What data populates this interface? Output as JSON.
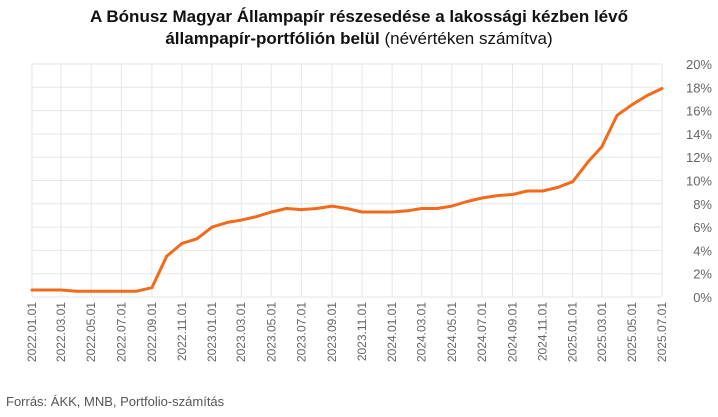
{
  "title": {
    "line1": "A Bónusz Magyar Állampapír részesedése a lakossági kézben lévő",
    "line2_bold": "állampapír-portfólión belül",
    "line2_normal": " (névértéken számítva)"
  },
  "source": "Forrás: ÁKK, MNB, Portfolio-számítás",
  "colors": {
    "line": "#f26a1b",
    "grid": "#e6e6e6",
    "axis_text": "#666666"
  },
  "chart_data": {
    "type": "line",
    "title": "A Bónusz Magyar Állampapír részesedése a lakossági kézben lévő állampapír-portfólión belül (névértéken számítva)",
    "xlabel": "",
    "ylabel": "",
    "ylim": [
      0,
      20
    ],
    "y_ticks": [
      0,
      2,
      4,
      6,
      8,
      10,
      12,
      14,
      16,
      18,
      20
    ],
    "y_tick_labels": [
      "0%",
      "2%",
      "4%",
      "6%",
      "8%",
      "10%",
      "12%",
      "14%",
      "16%",
      "18%",
      "20%"
    ],
    "y_axis_position": "right",
    "grid": true,
    "x_tick_labels": [
      "2022.01.01",
      "2022.03.01",
      "2022.05.01",
      "2022.07.01",
      "2022.09.01",
      "2022.11.01",
      "2023.01.01",
      "2023.03.01",
      "2023.05.01",
      "2023.07.01",
      "2023.09.01",
      "2023.11.01",
      "2024.01.01",
      "2024.03.01",
      "2024.05.01",
      "2024.07.01",
      "2024.09.01",
      "2024.11.01",
      "2025.01.01",
      "2025.03.01",
      "2025.05.01",
      "2025.07.01"
    ],
    "series": [
      {
        "x": [
          "2022.01.01",
          "2022.02.01",
          "2022.03.01",
          "2022.04.01",
          "2022.05.01",
          "2022.06.01",
          "2022.07.01",
          "2022.08.01",
          "2022.09.01",
          "2022.10.01",
          "2022.11.01",
          "2022.12.01",
          "2023.01.01",
          "2023.02.01",
          "2023.03.01",
          "2023.04.01",
          "2023.05.01",
          "2023.06.01",
          "2023.07.01",
          "2023.08.01",
          "2023.09.01",
          "2023.10.01",
          "2023.11.01",
          "2023.12.01",
          "2024.01.01",
          "2024.02.01",
          "2024.03.01",
          "2024.04.01",
          "2024.05.01",
          "2024.06.01",
          "2024.07.01",
          "2024.08.01",
          "2024.09.01",
          "2024.10.01",
          "2024.11.01",
          "2024.12.01",
          "2025.01.01",
          "2025.02.01",
          "2025.03.01",
          "2025.04.01",
          "2025.05.01",
          "2025.06.01",
          "2025.07.01"
        ],
        "values": [
          0.6,
          0.6,
          0.6,
          0.5,
          0.5,
          0.5,
          0.5,
          0.5,
          0.8,
          3.5,
          4.6,
          5.0,
          6.0,
          6.4,
          6.6,
          6.9,
          7.3,
          7.6,
          7.5,
          7.6,
          7.8,
          7.6,
          7.3,
          7.3,
          7.3,
          7.4,
          7.6,
          7.6,
          7.8,
          8.2,
          8.5,
          8.7,
          8.8,
          9.1,
          9.1,
          9.4,
          9.9,
          11.6,
          12.9,
          15.6,
          16.5,
          17.3,
          17.9
        ]
      }
    ]
  }
}
